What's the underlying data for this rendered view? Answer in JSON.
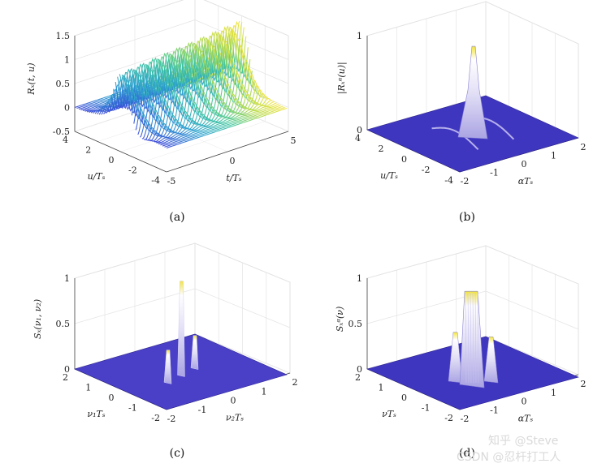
{
  "watermark": [
    "知乎 @Steve",
    "CSDN @忍杆打工人"
  ],
  "chart_data": [
    {
      "type": "surface3d",
      "caption": "(a)",
      "zlabel": "Rₓ(t, u)",
      "xlabel": "t/Tₛ",
      "ylabel": "u/Tₛ",
      "x_ticks": [
        "-5",
        "0",
        "5"
      ],
      "y_ticks": [
        "4",
        "2",
        "0",
        "-2",
        "-4"
      ],
      "z_ticks": [
        "1.5",
        "1",
        "0.5",
        "0",
        "-0.5"
      ],
      "xlim": [
        -5,
        5
      ],
      "ylim": [
        -4,
        4
      ],
      "zlim": [
        -0.5,
        1.5
      ],
      "peak_value": 1.45,
      "ridge_count": 10,
      "colormap": [
        "#3b4bd8",
        "#2a9fd0",
        "#40c6a0",
        "#b9db4a",
        "#f2e43c"
      ]
    },
    {
      "type": "surface3d",
      "caption": "(b)",
      "zlabel": "|Rₓᵅ(u)|",
      "xlabel": "αTₛ",
      "ylabel": "u/Tₛ",
      "x_ticks": [
        "-2",
        "-1",
        "0",
        "1",
        "2"
      ],
      "y_ticks": [
        "4",
        "2",
        "0",
        "-2",
        "-4"
      ],
      "z_ticks": [
        "1",
        "0"
      ],
      "xlim": [
        -2,
        2
      ],
      "ylim": [
        -4,
        4
      ],
      "zlim": [
        0,
        1
      ],
      "peak_value": 0.93,
      "colormap": [
        "#3f36c0",
        "#8e86d8",
        "#d7d2ef",
        "#ffffff"
      ]
    },
    {
      "type": "surface3d",
      "caption": "(c)",
      "zlabel": "Sₓ(ν₁, ν₂)",
      "xlabel": "ν₂Tₛ",
      "ylabel": "ν₁Tₛ",
      "x_ticks": [
        "-2",
        "-1",
        "0",
        "1",
        "2"
      ],
      "y_ticks": [
        "2",
        "1",
        "0",
        "-1",
        "-2"
      ],
      "z_ticks": [
        "1",
        "0.5",
        "0"
      ],
      "xlim": [
        -2,
        2
      ],
      "ylim": [
        -2,
        2
      ],
      "zlim": [
        0,
        1
      ],
      "peak_value": 1.0,
      "colormap": [
        "#3f36c0",
        "#8e86d8",
        "#e6e4f7",
        "#f2e43c"
      ]
    },
    {
      "type": "surface3d",
      "caption": "(d)",
      "zlabel": "Sₓᵅ(ν)",
      "xlabel": "αTₛ",
      "ylabel": "νTₛ",
      "x_ticks": [
        "-2",
        "-1",
        "0",
        "1",
        "2"
      ],
      "y_ticks": [
        "2",
        "1",
        "0",
        "-1",
        "-2"
      ],
      "z_ticks": [
        "1",
        "0.5",
        "0"
      ],
      "xlim": [
        -2,
        2
      ],
      "ylim": [
        -2,
        2
      ],
      "zlim": [
        0,
        1
      ],
      "peak_value": 0.9,
      "colormap": [
        "#3f36c0",
        "#9c96de",
        "#e8e6f7",
        "#f2e43c"
      ]
    }
  ]
}
